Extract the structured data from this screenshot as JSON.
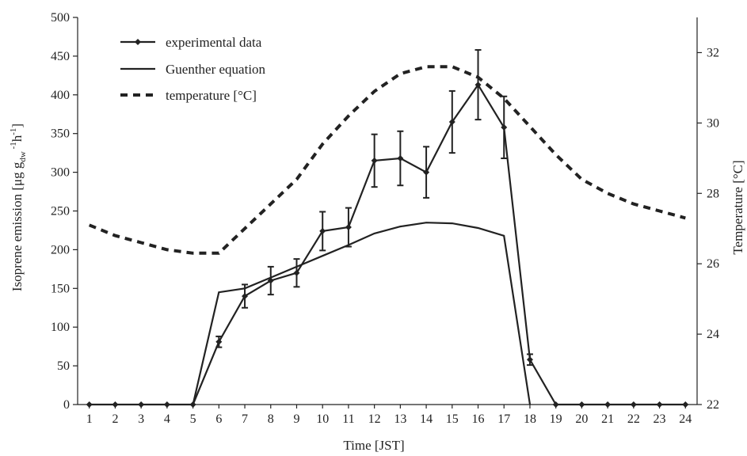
{
  "chart_data": {
    "type": "line",
    "x": [
      1,
      2,
      3,
      4,
      5,
      6,
      7,
      8,
      9,
      10,
      11,
      12,
      13,
      14,
      15,
      16,
      17,
      18,
      19,
      20,
      21,
      22,
      23,
      24
    ],
    "xlabel": "Time [JST]",
    "ylabel": "Isoprene emission [μg g_dw^-1 h^-1]",
    "y2label": "Temperature [°C]",
    "ylim": [
      0,
      500
    ],
    "y2lim": [
      22,
      33
    ],
    "yticks": [
      0,
      50,
      100,
      150,
      200,
      250,
      300,
      350,
      400,
      450,
      500
    ],
    "y2ticks": [
      22,
      24,
      26,
      28,
      30,
      32
    ],
    "grid": false,
    "legend_position": "top-left",
    "series": [
      {
        "name": "experimental data",
        "axis": "left",
        "style": "solid-markers",
        "values": [
          0,
          0,
          0,
          0,
          0,
          81,
          140,
          160,
          170,
          224,
          229,
          315,
          318,
          300,
          365,
          413,
          358,
          58,
          0,
          0,
          0,
          0,
          0,
          0
        ],
        "errors": [
          0,
          0,
          0,
          0,
          0,
          7,
          15,
          18,
          18,
          25,
          25,
          34,
          35,
          33,
          40,
          45,
          40,
          7,
          0,
          0,
          0,
          0,
          0,
          0
        ]
      },
      {
        "name": "Guenther equation",
        "axis": "left",
        "style": "solid",
        "x": [
          5,
          6,
          7,
          8,
          9,
          10,
          11,
          12,
          13,
          14,
          15,
          16,
          17,
          18
        ],
        "values": [
          0,
          145,
          150,
          164,
          178,
          192,
          206,
          221,
          230,
          235,
          234,
          228,
          218,
          0
        ]
      },
      {
        "name": "temperature [°C]",
        "axis": "right",
        "style": "dashed",
        "values": [
          27.1,
          26.8,
          26.6,
          26.4,
          26.3,
          26.3,
          27.0,
          27.7,
          28.4,
          29.4,
          30.2,
          30.9,
          31.4,
          31.6,
          31.6,
          31.3,
          30.7,
          29.9,
          29.1,
          28.4,
          28.0,
          27.7,
          27.5,
          27.3
        ]
      }
    ]
  }
}
